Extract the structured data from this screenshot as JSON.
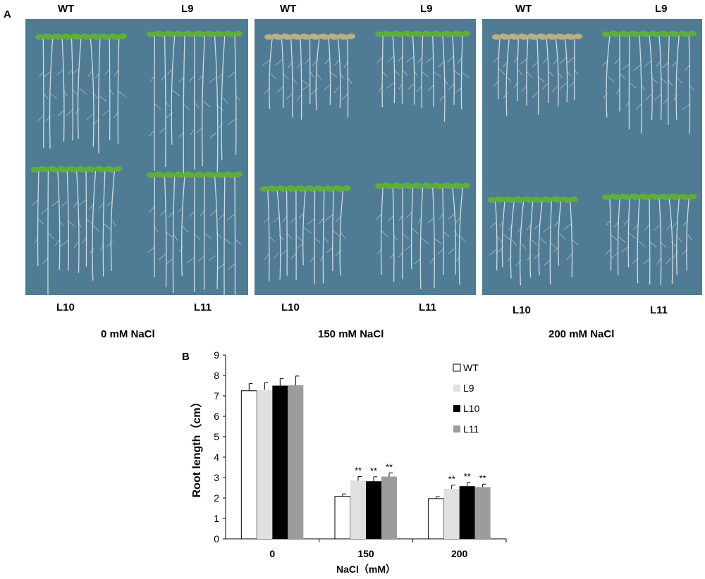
{
  "panel_a": {
    "letter": "A",
    "panels": [
      {
        "top_left": "WT",
        "top_right": "L9",
        "bottom_left": "L10",
        "bottom_right": "L11",
        "condition": "0 mM NaCl"
      },
      {
        "top_left": "WT",
        "top_right": "L9",
        "bottom_left": "L10",
        "bottom_right": "L11",
        "condition": "150 mM NaCl"
      },
      {
        "top_left": "WT",
        "top_right": "L9",
        "bottom_left": "L10",
        "bottom_right": "L11",
        "condition": "200 mM NaCl"
      }
    ],
    "colors": {
      "plate": "#4f7c94",
      "leaf": "#5fae3a",
      "leaf_stressed": "#b9b184",
      "root": "#dfe7ea"
    }
  },
  "panel_b": {
    "letter": "B"
  },
  "chart_data": {
    "type": "bar",
    "categories": [
      "0",
      "150",
      "200"
    ],
    "xlabel": "NaCl（mM）",
    "ylabel": "Root length（cm）",
    "ylim": [
      0,
      9
    ],
    "yticks": [
      "0",
      "1",
      "2",
      "3",
      "4",
      "5",
      "6",
      "7",
      "8",
      "9"
    ],
    "legend_position": "top-right",
    "series": [
      {
        "name": "WT",
        "values": [
          7.25,
          2.08,
          1.97
        ],
        "errors": [
          0.35,
          0.12,
          0.1
        ],
        "marks": [
          "",
          "",
          ""
        ],
        "color": "#ffffff"
      },
      {
        "name": "L9",
        "values": [
          7.3,
          2.85,
          2.45
        ],
        "errors": [
          0.35,
          0.2,
          0.18
        ],
        "marks": [
          "",
          "**",
          "**"
        ],
        "color": "#e0e0e0"
      },
      {
        "name": "L10",
        "values": [
          7.5,
          2.82,
          2.58
        ],
        "errors": [
          0.35,
          0.22,
          0.18
        ],
        "marks": [
          "",
          "**",
          "**"
        ],
        "color": "#000000"
      },
      {
        "name": "L11",
        "values": [
          7.52,
          3.05,
          2.53
        ],
        "errors": [
          0.45,
          0.18,
          0.15
        ],
        "marks": [
          "",
          "**",
          "**"
        ],
        "color": "#9c9c9c"
      }
    ]
  }
}
